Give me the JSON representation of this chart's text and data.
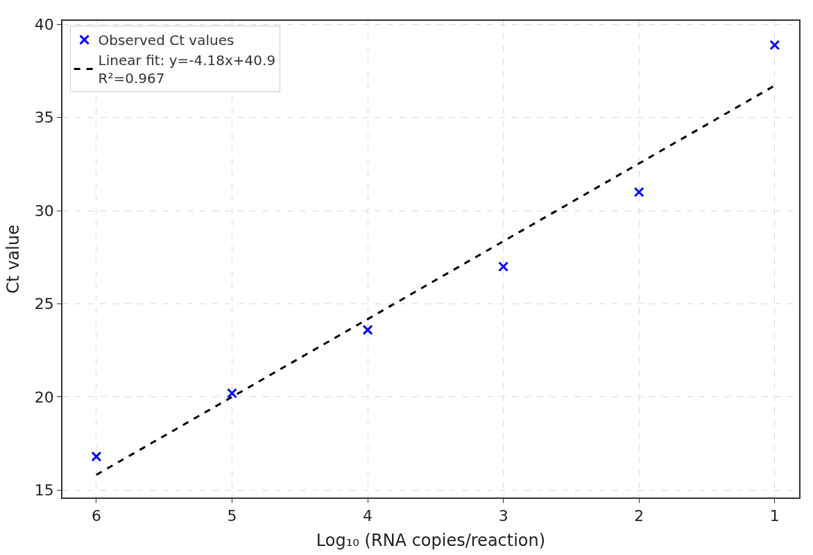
{
  "chart_data": {
    "type": "scatter",
    "xlabel": "Log₁₀ (RNA copies/reaction)",
    "ylabel": "Ct value",
    "xlim": [
      6.25,
      0.82
    ],
    "xticks": [
      6,
      5,
      4,
      3,
      2,
      1
    ],
    "ylim": [
      14.6,
      40.2
    ],
    "yticks": [
      15,
      20,
      25,
      30,
      35,
      40
    ],
    "grid": true,
    "legend": "top left",
    "series": [
      {
        "name": "Observed Ct values",
        "color": "#0000ff",
        "marker": "cross",
        "x": [
          6,
          5,
          4,
          3,
          2,
          1
        ],
        "values": [
          16.8,
          20.2,
          23.6,
          27.0,
          31.0,
          38.9
        ]
      },
      {
        "name": "Linear fit: y=-4.18x+40.9\nR²=0.967",
        "type": "line",
        "color": "#000000",
        "line_style": "dashed",
        "marker": "none",
        "x": [
          6,
          1
        ],
        "values": [
          15.82,
          36.72
        ]
      }
    ]
  }
}
